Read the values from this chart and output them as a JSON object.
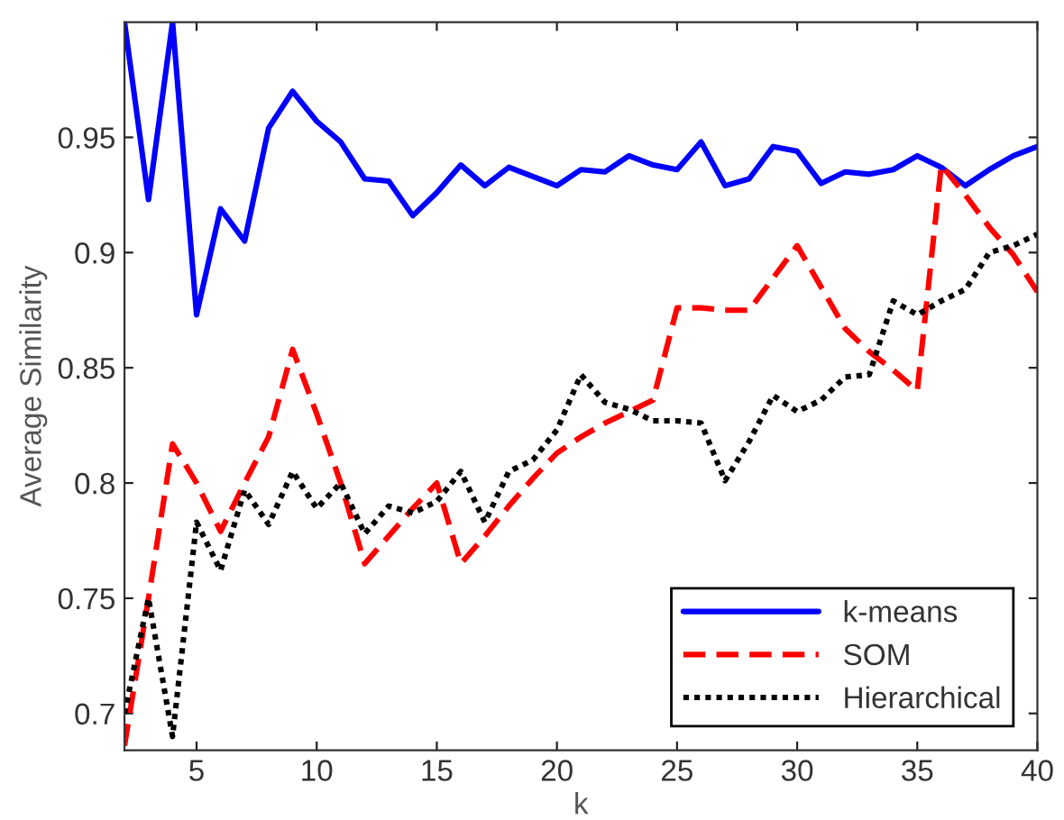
{
  "chart_data": {
    "type": "line",
    "xlabel": "k",
    "ylabel": "Average Similarity",
    "x": [
      2,
      3,
      4,
      5,
      6,
      7,
      8,
      9,
      10,
      11,
      12,
      13,
      14,
      15,
      16,
      17,
      18,
      19,
      20,
      21,
      22,
      23,
      24,
      25,
      26,
      27,
      28,
      29,
      30,
      31,
      32,
      33,
      34,
      35,
      36,
      37,
      38,
      39,
      40
    ],
    "series": [
      {
        "name": "k-means",
        "color": "#0000ff",
        "line_style": "solid",
        "values": [
          1.0,
          0.923,
          1.0,
          0.873,
          0.919,
          0.905,
          0.954,
          0.97,
          0.957,
          0.948,
          0.932,
          0.931,
          0.916,
          0.926,
          0.938,
          0.929,
          0.937,
          0.933,
          0.929,
          0.936,
          0.935,
          0.942,
          0.938,
          0.936,
          0.948,
          0.929,
          0.932,
          0.946,
          0.944,
          0.93,
          0.935,
          0.934,
          0.936,
          0.942,
          0.937,
          0.929,
          0.936,
          0.942,
          0.946
        ]
      },
      {
        "name": "SOM",
        "color": "#ff0000",
        "line_style": "dashed",
        "values": [
          0.686,
          0.75,
          0.817,
          0.8,
          0.779,
          0.8,
          0.82,
          0.858,
          0.83,
          0.8,
          0.765,
          0.777,
          0.789,
          0.8,
          0.765,
          0.777,
          0.79,
          0.802,
          0.813,
          0.82,
          0.826,
          0.831,
          0.836,
          0.876,
          0.876,
          0.875,
          0.875,
          0.889,
          0.903,
          0.885,
          0.867,
          0.857,
          0.849,
          0.84,
          0.938,
          0.925,
          0.911,
          0.899,
          0.883
        ]
      },
      {
        "name": "Hierarchical",
        "color": "#000000",
        "line_style": "dotted",
        "values": [
          0.7,
          0.75,
          0.69,
          0.783,
          0.762,
          0.797,
          0.782,
          0.805,
          0.789,
          0.8,
          0.778,
          0.79,
          0.787,
          0.792,
          0.805,
          0.783,
          0.805,
          0.81,
          0.823,
          0.847,
          0.835,
          0.832,
          0.827,
          0.827,
          0.826,
          0.801,
          0.818,
          0.838,
          0.831,
          0.836,
          0.846,
          0.847,
          0.879,
          0.873,
          0.879,
          0.884,
          0.9,
          0.903,
          0.908
        ]
      }
    ],
    "xlim": [
      2,
      40
    ],
    "xticks": [
      5,
      10,
      15,
      20,
      25,
      30,
      35,
      40
    ],
    "ylim": [
      0.684,
      1.0
    ],
    "yticks": [
      0.7,
      0.75,
      0.8,
      0.85,
      0.9,
      0.95
    ],
    "legend": "bottom right",
    "grid": false,
    "marker": "none"
  }
}
